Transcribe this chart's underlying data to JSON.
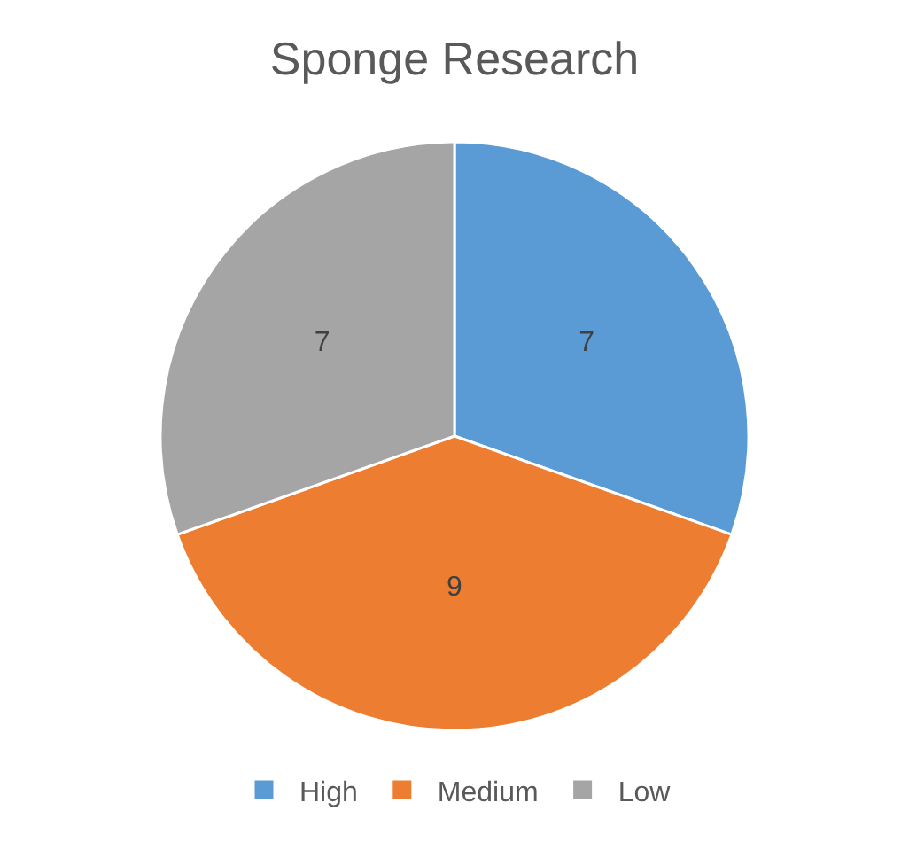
{
  "chart_data": {
    "type": "pie",
    "title": "Sponge Research",
    "categories": [
      "High",
      "Medium",
      "Low"
    ],
    "values": [
      7,
      9,
      7
    ],
    "colors": [
      "#5b9bd5",
      "#ed7d31",
      "#a5a5a5"
    ],
    "data_labels": true,
    "legend": "bottom"
  }
}
